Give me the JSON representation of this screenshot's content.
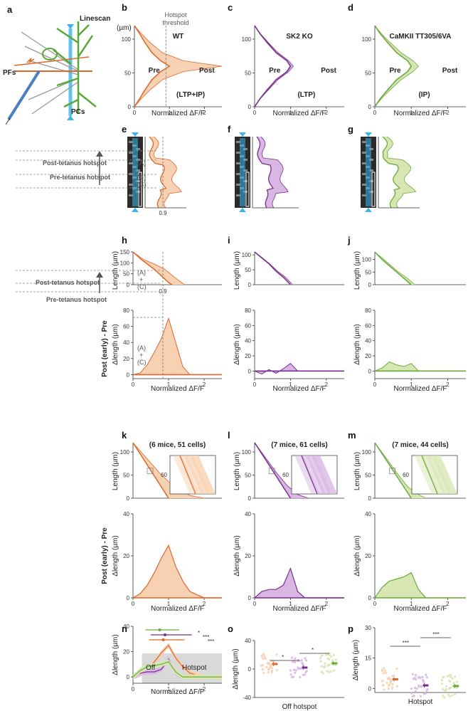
{
  "colors": {
    "wt": "#e0662c",
    "wt_fill": "#f6d2b2",
    "ko": "#7a2d8f",
    "ko_fill": "#d8b8e2",
    "ip": "#6aaa3a",
    "ip_fill": "#d8e6b4",
    "linescan": "#3db4e8",
    "pc": "#5aa83a"
  },
  "panel_letters": [
    "a",
    "b",
    "c",
    "d",
    "e",
    "f",
    "g",
    "h",
    "i",
    "j",
    "k",
    "l",
    "m",
    "n",
    "o",
    "p"
  ],
  "schematic": {
    "linescan": "Linescan",
    "pfs": "PFs",
    "pcs": "PCs"
  },
  "row1": {
    "um_label": "(µm)",
    "threshold_label": "Hotspot threshold",
    "xlabel": "Normalized ΔF/F",
    "titles": [
      "WT",
      "SK2 KO",
      "CaMKII TT305/6VA"
    ],
    "pre": "Pre",
    "post": "Post",
    "conditions": [
      "(LTP+IP)",
      "(LTP)",
      "(IP)"
    ]
  },
  "row2": {
    "post_hotspot": "Post-tetanus hotspot",
    "pre_hotspot": "Pre-tetanus hotspot",
    "region_a": "(A)",
    "region_b": "(B)",
    "region_c": "(C)",
    "threshold_value": "0.9"
  },
  "row3": {
    "ylabel_top": "Length (µm)",
    "ylabel_bottom": "Δlength (µm)",
    "row_label": "Post (early) - Pre",
    "post_hotspot": "Post-tetanus hotspot",
    "pre_hotspot": "Pre-tetanus hotspot",
    "a_c": [
      "(A)",
      "+",
      "(C)"
    ],
    "threshold_value": "0.9",
    "xlabel": "Normalized ΔF/F"
  },
  "row4": {
    "titles": [
      "(6 mice, 51 cells)",
      "(7 mice, 61 cells)",
      "(7 mice, 44 cells)"
    ],
    "inset_tick": "60",
    "ylabel_top": "Length (µm)",
    "ylabel_bottom": "Δlength (µm)",
    "row_label": "Post (early) - Pre",
    "xlabel": "Normalized ΔF/F"
  },
  "row5": {
    "n_off": "Off",
    "n_hotspot": "Hotspot",
    "n_stars": [
      "*",
      "***",
      "***"
    ],
    "o_xlabel": "Off hotspot",
    "p_xlabel": "Hotspot",
    "o_stars": [
      "*",
      "*"
    ],
    "p_stars": [
      "***",
      "***"
    ],
    "ylabel": "Δlength (µm)",
    "xlabel": "Normalized ΔF/F"
  },
  "chart_data": [
    {
      "panel": "b",
      "type": "line",
      "title": "WT",
      "xlabel": "Normalized ΔF/F",
      "ylabel": "(µm)",
      "xlim": [
        0,
        2.5
      ],
      "ylim": [
        0,
        120
      ],
      "threshold_x": 0.9,
      "series": [
        {
          "name": "Pre",
          "x": [
            0.0,
            0.15,
            0.3,
            0.5,
            0.75,
            1.0,
            0.75,
            0.5,
            0.3,
            0.15,
            0.0
          ],
          "y": [
            0,
            12,
            25,
            40,
            52,
            60,
            68,
            80,
            95,
            108,
            120
          ]
        },
        {
          "name": "Post",
          "x": [
            0.0,
            0.2,
            0.45,
            0.8,
            1.4,
            2.5,
            1.4,
            0.8,
            0.45,
            0.2,
            0.0
          ],
          "y": [
            0,
            12,
            25,
            40,
            52,
            60,
            68,
            80,
            95,
            108,
            120
          ]
        }
      ]
    },
    {
      "panel": "c",
      "type": "line",
      "title": "SK2 KO",
      "xlabel": "Normalized ΔF/F",
      "xlim": [
        0,
        2.5
      ],
      "ylim": [
        0,
        120
      ],
      "series": [
        {
          "name": "Pre",
          "x": [
            0.0,
            0.15,
            0.35,
            0.6,
            0.9,
            1.0,
            0.9,
            0.6,
            0.35,
            0.15,
            0.0
          ],
          "y": [
            0,
            12,
            25,
            40,
            52,
            60,
            68,
            80,
            95,
            108,
            120
          ]
        },
        {
          "name": "Post",
          "x": [
            0.0,
            0.16,
            0.38,
            0.65,
            0.95,
            1.08,
            0.95,
            0.65,
            0.38,
            0.16,
            0.0
          ],
          "y": [
            0,
            12,
            25,
            40,
            52,
            60,
            68,
            80,
            95,
            108,
            120
          ]
        }
      ]
    },
    {
      "panel": "d",
      "type": "line",
      "title": "CaMKII TT305/6VA",
      "xlabel": "Normalized ΔF/F",
      "xlim": [
        0,
        2.5
      ],
      "ylim": [
        0,
        120
      ],
      "series": [
        {
          "name": "Pre",
          "x": [
            0.0,
            0.15,
            0.35,
            0.6,
            0.9,
            1.0,
            0.9,
            0.6,
            0.35,
            0.15,
            0.0
          ],
          "y": [
            0,
            12,
            25,
            40,
            52,
            60,
            68,
            80,
            95,
            108,
            120
          ]
        },
        {
          "name": "Post",
          "x": [
            0.0,
            0.18,
            0.42,
            0.72,
            1.05,
            1.2,
            1.05,
            0.72,
            0.42,
            0.18,
            0.0
          ],
          "y": [
            0,
            12,
            25,
            40,
            52,
            60,
            68,
            80,
            95,
            108,
            120
          ]
        }
      ]
    },
    {
      "panel": "h-top",
      "type": "area",
      "ylabel": "Length (µm)",
      "xlim": [
        0,
        2.5
      ],
      "ylim": [
        0,
        150
      ],
      "series": [
        {
          "name": "Pre",
          "x": [
            0,
            0.2,
            0.4,
            0.6,
            0.8,
            1.0,
            1.1
          ],
          "y": [
            150,
            120,
            95,
            70,
            40,
            10,
            0
          ]
        },
        {
          "name": "Post",
          "x": [
            0,
            0.3,
            0.6,
            0.9,
            1.2,
            1.45
          ],
          "y": [
            150,
            115,
            95,
            70,
            30,
            0
          ]
        }
      ]
    },
    {
      "panel": "h-bottom",
      "type": "area",
      "ylabel": "Δlength (µm)",
      "xlabel": "Normalized ΔF/F",
      "xlim": [
        0,
        2.5
      ],
      "ylim": [
        -5,
        80
      ],
      "series": [
        {
          "name": "Post (early) - Pre",
          "x": [
            0,
            0.2,
            0.4,
            0.6,
            0.8,
            1.0,
            1.2,
            1.4,
            1.6,
            2.5
          ],
          "y": [
            0,
            2,
            12,
            28,
            45,
            70,
            40,
            10,
            0,
            0
          ]
        }
      ]
    },
    {
      "panel": "i-top",
      "type": "area",
      "ylabel": "Length (µm)",
      "xlim": [
        0,
        2.5
      ],
      "ylim": [
        0,
        110
      ],
      "series": [
        {
          "name": "Pre",
          "x": [
            0,
            0.2,
            0.4,
            0.6,
            0.8,
            1.0
          ],
          "y": [
            110,
            90,
            70,
            45,
            25,
            0
          ]
        },
        {
          "name": "Post",
          "x": [
            0,
            0.22,
            0.42,
            0.64,
            0.86,
            1.06
          ],
          "y": [
            110,
            90,
            70,
            45,
            25,
            0
          ]
        }
      ]
    },
    {
      "panel": "i-bottom",
      "type": "area",
      "ylabel": "Δlength (µm)",
      "xlabel": "Normalized ΔF/F",
      "xlim": [
        0,
        2.5
      ],
      "ylim": [
        -10,
        80
      ],
      "series": [
        {
          "name": "Post (early) - Pre",
          "x": [
            0,
            0.2,
            0.4,
            0.6,
            0.8,
            1.0,
            1.2,
            2.5
          ],
          "y": [
            0,
            -4,
            2,
            -3,
            3,
            10,
            0,
            0
          ]
        }
      ]
    },
    {
      "panel": "j-top",
      "type": "area",
      "ylabel": "Length (µm)",
      "xlim": [
        0,
        2.5
      ],
      "ylim": [
        0,
        130
      ],
      "series": [
        {
          "name": "Pre",
          "x": [
            0,
            0.2,
            0.4,
            0.6,
            0.8,
            1.0
          ],
          "y": [
            130,
            100,
            75,
            50,
            25,
            0
          ]
        },
        {
          "name": "Post",
          "x": [
            0,
            0.25,
            0.45,
            0.65,
            0.9,
            1.1
          ],
          "y": [
            130,
            100,
            75,
            50,
            25,
            0
          ]
        }
      ]
    },
    {
      "panel": "j-bottom",
      "type": "area",
      "ylabel": "Δlength (µm)",
      "xlabel": "Normalized ΔF/F",
      "xlim": [
        0,
        2.5
      ],
      "ylim": [
        -10,
        80
      ],
      "series": [
        {
          "name": "Post (early) - Pre",
          "x": [
            0,
            0.2,
            0.4,
            0.6,
            0.8,
            1.0,
            1.2,
            2.5
          ],
          "y": [
            0,
            4,
            12,
            8,
            6,
            10,
            0,
            0
          ]
        }
      ]
    },
    {
      "panel": "k-top",
      "type": "area",
      "title": "(6 mice, 51 cells)",
      "ylabel": "Length (µm)",
      "xlim": [
        0,
        2.5
      ],
      "ylim": [
        0,
        120
      ],
      "series": [
        {
          "name": "Pre",
          "x": [
            0,
            0.25,
            0.5,
            0.75,
            1.0
          ],
          "y": [
            120,
            90,
            60,
            30,
            0
          ]
        },
        {
          "name": "Post",
          "x": [
            0,
            0.4,
            0.8,
            1.2,
            1.6,
            2.0
          ],
          "y": [
            120,
            85,
            50,
            22,
            6,
            0
          ]
        }
      ]
    },
    {
      "panel": "k-bottom",
      "type": "area",
      "ylabel": "Δlength (µm)",
      "xlabel": "Normalized ΔF/F",
      "xlim": [
        0,
        2.5
      ],
      "ylim": [
        0,
        40
      ],
      "series": [
        {
          "name": "Post (early) - Pre",
          "x": [
            0,
            0.2,
            0.4,
            0.6,
            0.8,
            1.0,
            1.2,
            1.4,
            1.6,
            2.0,
            2.5
          ],
          "y": [
            0,
            2,
            6,
            12,
            19,
            25,
            15,
            8,
            3,
            0,
            0
          ]
        }
      ]
    },
    {
      "panel": "l-top",
      "type": "area",
      "title": "(7 mice, 61 cells)",
      "ylabel": "Length (µm)",
      "xlim": [
        0,
        2.5
      ],
      "ylim": [
        0,
        120
      ],
      "series": [
        {
          "name": "Pre",
          "x": [
            0,
            0.25,
            0.5,
            0.75,
            1.0
          ],
          "y": [
            120,
            90,
            60,
            30,
            0
          ]
        },
        {
          "name": "Post",
          "x": [
            0,
            0.3,
            0.6,
            0.9,
            1.2,
            1.5
          ],
          "y": [
            120,
            88,
            56,
            28,
            8,
            0
          ]
        }
      ]
    },
    {
      "panel": "l-bottom",
      "type": "area",
      "ylabel": "Δlength (µm)",
      "xlabel": "Normalized ΔF/F",
      "xlim": [
        0,
        2.5
      ],
      "ylim": [
        0,
        40
      ],
      "series": [
        {
          "name": "Post (early) - Pre",
          "x": [
            0,
            0.2,
            0.4,
            0.6,
            0.8,
            1.0,
            1.2,
            1.4,
            2.5
          ],
          "y": [
            0,
            3,
            4,
            4,
            6,
            14,
            3,
            0,
            0
          ]
        }
      ]
    },
    {
      "panel": "m-top",
      "type": "area",
      "title": "(7 mice, 44 cells)",
      "ylabel": "Length (µm)",
      "xlim": [
        0,
        2.5
      ],
      "ylim": [
        0,
        120
      ],
      "series": [
        {
          "name": "Pre",
          "x": [
            0,
            0.25,
            0.5,
            0.75,
            1.0
          ],
          "y": [
            120,
            90,
            60,
            30,
            0
          ]
        },
        {
          "name": "Post",
          "x": [
            0,
            0.3,
            0.6,
            0.9,
            1.2,
            1.4
          ],
          "y": [
            120,
            88,
            55,
            25,
            8,
            0
          ]
        }
      ]
    },
    {
      "panel": "m-bottom",
      "type": "area",
      "ylabel": "Δlength (µm)",
      "xlabel": "Normalized ΔF/F",
      "xlim": [
        0,
        2.5
      ],
      "ylim": [
        0,
        40
      ],
      "series": [
        {
          "name": "Post (early) - Pre",
          "x": [
            0,
            0.2,
            0.4,
            0.6,
            0.8,
            1.0,
            1.2,
            1.4,
            2.5
          ],
          "y": [
            0,
            5,
            8,
            9,
            10,
            12,
            4,
            0,
            0
          ]
        }
      ]
    },
    {
      "panel": "n",
      "type": "line",
      "ylabel": "Δlength (µm)",
      "xlabel": "Normalized ΔF/F",
      "xlim": [
        0,
        2.5
      ],
      "ylim": [
        -5,
        40
      ],
      "series": [
        {
          "name": "WT",
          "x": [
            0,
            0.2,
            0.4,
            0.6,
            0.8,
            1.0,
            1.2,
            1.4,
            1.6,
            2.0,
            2.5
          ],
          "y": [
            0,
            2,
            6,
            12,
            19,
            25,
            15,
            8,
            3,
            0,
            0
          ]
        },
        {
          "name": "SK2 KO",
          "x": [
            0,
            0.2,
            0.4,
            0.6,
            0.8,
            1.0,
            1.2,
            1.4,
            2.5
          ],
          "y": [
            0,
            3,
            4,
            4,
            6,
            14,
            3,
            0,
            0
          ]
        },
        {
          "name": "CaMKII TT305/6VA",
          "x": [
            0,
            0.2,
            0.4,
            0.6,
            0.8,
            1.0,
            1.2,
            1.4,
            2.5
          ],
          "y": [
            0,
            5,
            8,
            9,
            10,
            12,
            4,
            0,
            0
          ]
        }
      ],
      "error_bars": [
        {
          "name": "CaMKII TT305/6VA",
          "mean": 0.75,
          "low": 0.35,
          "high": 1.3
        },
        {
          "name": "SK2 KO",
          "mean": 0.9,
          "low": 0.5,
          "high": 1.65
        },
        {
          "name": "WT",
          "mean": 0.85,
          "low": 0.45,
          "high": 1.45
        }
      ]
    },
    {
      "panel": "o",
      "type": "scatter",
      "ylabel": "Δlength (µm)",
      "xlabel": "Off hotspot",
      "ylim": [
        -40,
        40
      ],
      "series": [
        {
          "name": "WT",
          "mean": 7
        },
        {
          "name": "SK2 KO",
          "mean": 2
        },
        {
          "name": "CaMKII TT305/6VA",
          "mean": 8
        }
      ]
    },
    {
      "panel": "p",
      "type": "scatter",
      "ylabel": "Δlength (µm)",
      "xlabel": "Hotspot",
      "ylim": [
        -2,
        30
      ],
      "series": [
        {
          "name": "WT",
          "mean": 4.5
        },
        {
          "name": "SK2 KO",
          "mean": 1.5
        },
        {
          "name": "CaMKII TT305/6VA",
          "mean": 1.2
        }
      ]
    }
  ]
}
